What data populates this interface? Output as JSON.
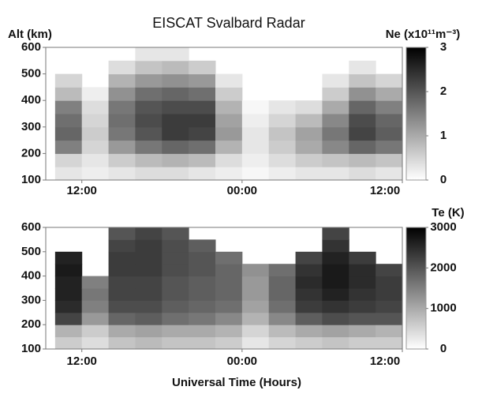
{
  "chart_data": [
    {
      "type": "heatmap",
      "title": "EISCAT Svalbard Radar",
      "y_label": "Alt (km)",
      "colorbar_label": "Ne (x10¹¹m⁻³)",
      "x_edges": [
        10,
        12,
        14,
        16,
        18,
        20,
        22,
        24,
        26,
        28,
        30,
        32,
        34,
        36
      ],
      "alt_edges": [
        100,
        150,
        200,
        250,
        300,
        350,
        400,
        450,
        500,
        550,
        600
      ],
      "z": [
        [
          0.3,
          0.5,
          1.5,
          1.8,
          1.7,
          1.5,
          0.8,
          0.5,
          null,
          null
        ],
        [
          0.2,
          0.3,
          0.5,
          0.6,
          0.5,
          0.4,
          0.2,
          null,
          null,
          null
        ],
        [
          0.3,
          0.6,
          1.2,
          1.6,
          1.7,
          1.6,
          1.3,
          0.9,
          0.4,
          null
        ],
        [
          0.4,
          0.8,
          1.6,
          2.0,
          2.1,
          2.0,
          1.7,
          1.2,
          0.7,
          0.3
        ],
        [
          0.4,
          0.9,
          1.8,
          2.3,
          2.3,
          2.1,
          1.8,
          1.3,
          0.8,
          0.3
        ],
        [
          0.3,
          0.8,
          1.7,
          2.2,
          2.3,
          2.1,
          1.7,
          1.2,
          0.6,
          null
        ],
        [
          0.2,
          0.4,
          0.9,
          1.2,
          1.1,
          0.9,
          0.6,
          0.3,
          null,
          null
        ],
        [
          0.1,
          0.2,
          0.3,
          0.3,
          0.2,
          0.1,
          null,
          null,
          null,
          null
        ],
        [
          0.2,
          0.4,
          0.6,
          0.7,
          0.5,
          0.3,
          null,
          null,
          null,
          null
        ],
        [
          0.3,
          0.6,
          1.0,
          1.1,
          0.8,
          0.4,
          null,
          null,
          null,
          null
        ],
        [
          0.3,
          0.7,
          1.4,
          1.6,
          1.4,
          1.0,
          0.6,
          0.3,
          null,
          null
        ],
        [
          0.4,
          0.8,
          1.8,
          2.2,
          2.1,
          1.8,
          1.3,
          0.7,
          0.3,
          null
        ],
        [
          0.3,
          0.7,
          1.6,
          1.9,
          1.8,
          1.5,
          1.0,
          0.5,
          null,
          null
        ]
      ],
      "xlim": [
        9.3,
        36
      ],
      "xticks": [
        {
          "value": 12,
          "label": "12:00"
        },
        {
          "value": 24,
          "label": "00:00"
        },
        {
          "value": 36,
          "label": "12:00"
        }
      ],
      "ylim": [
        100,
        600
      ],
      "yticks": [
        100,
        200,
        300,
        400,
        500,
        600
      ],
      "clim": [
        0,
        3
      ],
      "cticks": [
        0,
        1,
        2,
        3
      ],
      "colorscale": [
        "#ffffff",
        "#000000"
      ]
    },
    {
      "type": "heatmap",
      "x_label": "Universal Time (Hours)",
      "colorbar_label": "Te (K)",
      "x_edges": [
        10,
        12,
        14,
        16,
        18,
        20,
        22,
        24,
        26,
        28,
        30,
        32,
        34,
        36
      ],
      "alt_edges": [
        100,
        150,
        200,
        250,
        300,
        350,
        400,
        450,
        500,
        550,
        600
      ],
      "z": [
        [
          600,
          900,
          2200,
          2500,
          2600,
          2600,
          2700,
          2600,
          null,
          null
        ],
        [
          400,
          600,
          1200,
          1500,
          1600,
          1500,
          null,
          null,
          null,
          null
        ],
        [
          700,
          1000,
          1800,
          2100,
          2200,
          2200,
          2300,
          2300,
          2200,
          2000
        ],
        [
          800,
          1100,
          1900,
          2100,
          2200,
          2200,
          2300,
          2300,
          2300,
          2200
        ],
        [
          700,
          1000,
          1700,
          1900,
          2000,
          2000,
          2100,
          2100,
          2100,
          2000
        ],
        [
          700,
          1000,
          1600,
          1800,
          1900,
          1900,
          2000,
          2000,
          1900,
          null
        ],
        [
          600,
          900,
          1400,
          1700,
          1800,
          1800,
          1800,
          1700,
          null,
          null
        ],
        [
          300,
          500,
          900,
          1100,
          1200,
          1200,
          1300,
          null,
          null,
          null
        ],
        [
          500,
          800,
          1400,
          1700,
          1800,
          1800,
          1700,
          null,
          null,
          null
        ],
        [
          600,
          1000,
          1900,
          2300,
          2400,
          2500,
          2400,
          2200,
          null,
          null
        ],
        [
          700,
          1100,
          2100,
          2400,
          2600,
          2700,
          2700,
          2600,
          2400,
          2200
        ],
        [
          600,
          1000,
          2000,
          2300,
          2400,
          2500,
          2500,
          2300,
          null,
          null
        ],
        [
          600,
          900,
          2000,
          2200,
          2300,
          2300,
          2200,
          null,
          null,
          null
        ]
      ],
      "xlim": [
        9.3,
        36
      ],
      "xticks": [
        {
          "value": 12,
          "label": "12:00"
        },
        {
          "value": 24,
          "label": "00:00"
        },
        {
          "value": 36,
          "label": "12:00"
        }
      ],
      "ylim": [
        100,
        600
      ],
      "yticks": [
        100,
        200,
        300,
        400,
        500,
        600
      ],
      "clim": [
        0,
        3000
      ],
      "cticks": [
        0,
        1000,
        2000,
        3000
      ],
      "colorscale": [
        "#ffffff",
        "#000000"
      ]
    }
  ]
}
